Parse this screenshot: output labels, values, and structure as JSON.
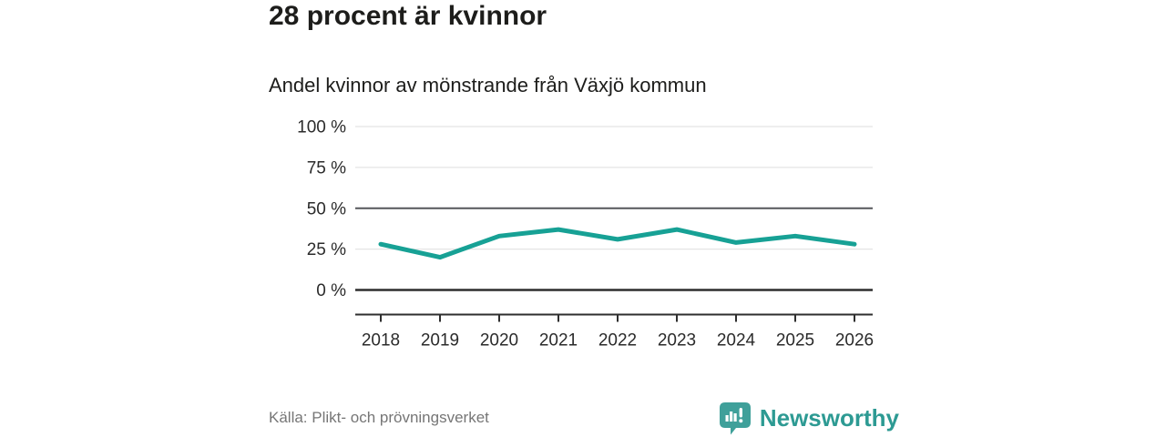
{
  "header": {
    "title": "28 procent är kvinnor",
    "subtitle": "Andel kvinnor av mönstrande från Växjö kommun"
  },
  "chart_data": {
    "type": "line",
    "title": "Andel kvinnor av mönstrande från Växjö kommun",
    "categories": [
      "2018",
      "2019",
      "2020",
      "2021",
      "2022",
      "2023",
      "2024",
      "2025",
      "2026"
    ],
    "series": [
      {
        "name": "Andel kvinnor av mönstrande",
        "values": [
          28,
          20,
          33,
          37,
          31,
          37,
          29,
          33,
          28
        ]
      }
    ],
    "xlabel": "",
    "ylabel": "",
    "ylim": [
      0,
      100
    ],
    "y_ticks": [
      {
        "value": 100,
        "label": "100 %"
      },
      {
        "value": 75,
        "label": "75 %"
      },
      {
        "value": 50,
        "label": "50 %"
      },
      {
        "value": 25,
        "label": "25 %"
      },
      {
        "value": 0,
        "label": "0 %"
      }
    ],
    "emphasized_gridline": 50,
    "grid": "horizontal",
    "legend": "none",
    "line_color": "#17a195"
  },
  "footer": {
    "source": "Källa: Plikt- och prövningsverket",
    "brand": "Newsworthy"
  },
  "icons": {
    "brand_mark": "newsworthy-speech-bubble-bar-chart-icon"
  },
  "colors": {
    "line": "#17a195",
    "grid_light": "#e4e4e4",
    "grid_emphasis": "#55565a",
    "baseline": "#2e2e2e",
    "axis": "#2e2e2e",
    "tick_label": "#2b2b2b",
    "title_text": "#1d1d1b",
    "source_text": "#767676",
    "brand_text": "#2d9a93",
    "brand_mark": "#3fa09a"
  }
}
